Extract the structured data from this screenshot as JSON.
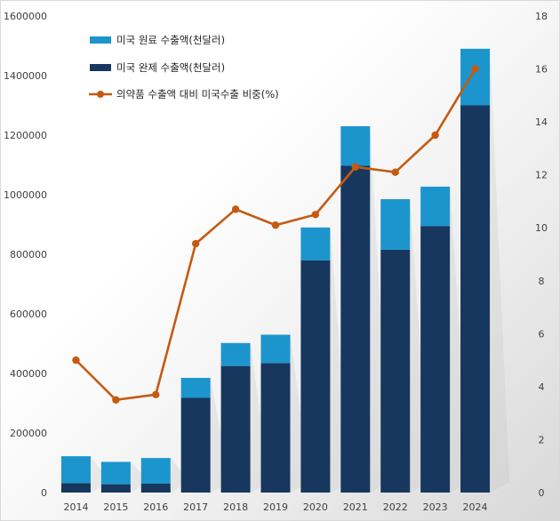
{
  "chart_data": {
    "type": "bar",
    "stacked": true,
    "categories": [
      "2014",
      "2015",
      "2016",
      "2017",
      "2018",
      "2019",
      "2020",
      "2021",
      "2022",
      "2023",
      "2024"
    ],
    "series": [
      {
        "name": "미국 완제 수출액(천달러)",
        "type": "bar",
        "axis": "left",
        "color": "#17375e",
        "values": [
          32000,
          28000,
          30000,
          318000,
          425000,
          435000,
          780000,
          1097000,
          815000,
          895000,
          1300000
        ]
      },
      {
        "name": "미국 원료 수출액(천달러)",
        "type": "bar",
        "axis": "left",
        "color": "#1c95cd",
        "values": [
          90000,
          75000,
          86000,
          67000,
          77000,
          95000,
          110000,
          133000,
          170000,
          132000,
          190000
        ]
      },
      {
        "name": "의약품 수출액 대비 미국수출 비중(%)",
        "type": "line",
        "axis": "right",
        "color": "#c55a11",
        "values": [
          5.0,
          3.5,
          3.7,
          9.4,
          10.7,
          10.1,
          10.5,
          12.3,
          12.1,
          13.5,
          16.0
        ]
      }
    ],
    "ylim": [
      0,
      1600000
    ],
    "y2lim": [
      0,
      18
    ],
    "yticks": [
      "0",
      "200000",
      "400000",
      "600000",
      "800000",
      "1000000",
      "1200000",
      "1400000",
      "1600000"
    ],
    "y2ticks": [
      "0",
      "2",
      "4",
      "6",
      "8",
      "10",
      "12",
      "14",
      "16",
      "18"
    ],
    "legend_position": "top-left",
    "grid": false
  }
}
